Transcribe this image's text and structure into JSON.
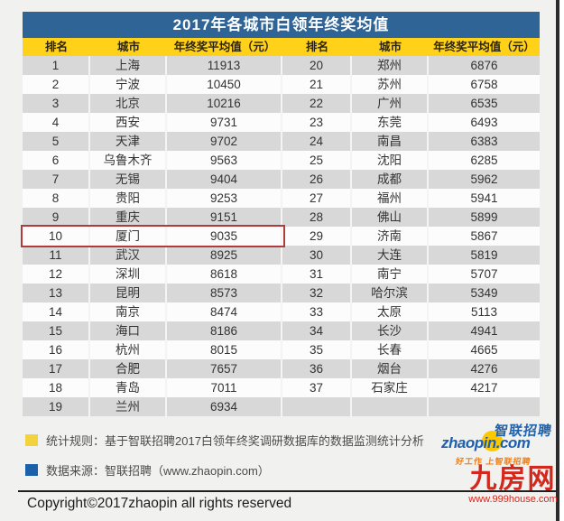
{
  "title": "2017年各城市白领年终奖均值",
  "table": {
    "headers": [
      "排名",
      "城市",
      "年终奖平均值（元）",
      "排名",
      "城市",
      "年终奖平均值（元）"
    ],
    "highlight_rank": "10",
    "display_rows": [
      [
        "1",
        "上海",
        "11913",
        "20",
        "郑州",
        "6876"
      ],
      [
        "2",
        "宁波",
        "10450",
        "21",
        "苏州",
        "6758"
      ],
      [
        "3",
        "北京",
        "10216",
        "22",
        "广州",
        "6535"
      ],
      [
        "4",
        "西安",
        "9731",
        "23",
        "东莞",
        "6493"
      ],
      [
        "5",
        "天津",
        "9702",
        "24",
        "南昌",
        "6383"
      ],
      [
        "6",
        "乌鲁木齐",
        "9563",
        "25",
        "沈阳",
        "6285"
      ],
      [
        "7",
        "无锡",
        "9404",
        "26",
        "成都",
        "5962"
      ],
      [
        "8",
        "贵阳",
        "9253",
        "27",
        "福州",
        "5941"
      ],
      [
        "9",
        "重庆",
        "9151",
        "28",
        "佛山",
        "5899"
      ],
      [
        "10",
        "厦门",
        "9035",
        "29",
        "济南",
        "5867"
      ],
      [
        "11",
        "武汉",
        "8925",
        "30",
        "大连",
        "5819"
      ],
      [
        "12",
        "深圳",
        "8618",
        "31",
        "南宁",
        "5707"
      ],
      [
        "13",
        "昆明",
        "8573",
        "32",
        "哈尔滨",
        "5349"
      ],
      [
        "14",
        "南京",
        "8474",
        "33",
        "太原",
        "5113"
      ],
      [
        "15",
        "海口",
        "8186",
        "34",
        "长沙",
        "4941"
      ],
      [
        "16",
        "杭州",
        "8015",
        "35",
        "长春",
        "4665"
      ],
      [
        "17",
        "合肥",
        "7657",
        "36",
        "烟台",
        "4276"
      ],
      [
        "18",
        "青岛",
        "7011",
        "37",
        "石家庄",
        "4217"
      ],
      [
        "19",
        "兰州",
        "6934",
        "",
        "",
        ""
      ]
    ]
  },
  "chart_data": {
    "type": "table",
    "title": "2017年各城市白领年终奖均值",
    "columns": [
      "排名",
      "城市",
      "年终奖平均值（元）"
    ],
    "categories": [
      "上海",
      "宁波",
      "北京",
      "西安",
      "天津",
      "乌鲁木齐",
      "无锡",
      "贵阳",
      "重庆",
      "厦门",
      "武汉",
      "深圳",
      "昆明",
      "南京",
      "海口",
      "杭州",
      "合肥",
      "青岛",
      "兰州",
      "郑州",
      "苏州",
      "广州",
      "东莞",
      "南昌",
      "沈阳",
      "成都",
      "福州",
      "佛山",
      "济南",
      "大连",
      "南宁",
      "哈尔滨",
      "太原",
      "长沙",
      "长春",
      "烟台",
      "石家庄"
    ],
    "values": [
      11913,
      10450,
      10216,
      9731,
      9702,
      9563,
      9404,
      9253,
      9151,
      9035,
      8925,
      8618,
      8573,
      8474,
      8186,
      8015,
      7657,
      7011,
      6934,
      6876,
      6758,
      6535,
      6493,
      6383,
      6285,
      5962,
      5941,
      5899,
      5867,
      5819,
      5707,
      5349,
      5113,
      4941,
      4665,
      4276,
      4217
    ],
    "highlighted_category": "厦门"
  },
  "legend": {
    "items": [
      {
        "text": "统计规则：基于智联招聘2017白领年终奖调研数据库的数据监测统计分析"
      },
      {
        "text": "数据来源：智联招聘（www.zhaopin.com）"
      }
    ]
  },
  "zhaopin_logo": {
    "brand_cn": "智联招聘",
    "brand_en": "zhaopin.com",
    "tagline": "好工作 上智联招聘"
  },
  "copyright": "Copyright©2017zhaopin all rights reserved",
  "site_logo": {
    "name": "九房网",
    "url": "www.999house.com"
  },
  "colors": {
    "title_bg": "#2e6496",
    "header_bg": "#ffd118",
    "row_gray": "#d8d8d8",
    "row_white": "#fcfcfc",
    "highlight_border": "#b13a3a",
    "legend_yellow": "#f2d23d",
    "legend_blue": "#1a61a9",
    "logo_red": "#d3281e"
  }
}
